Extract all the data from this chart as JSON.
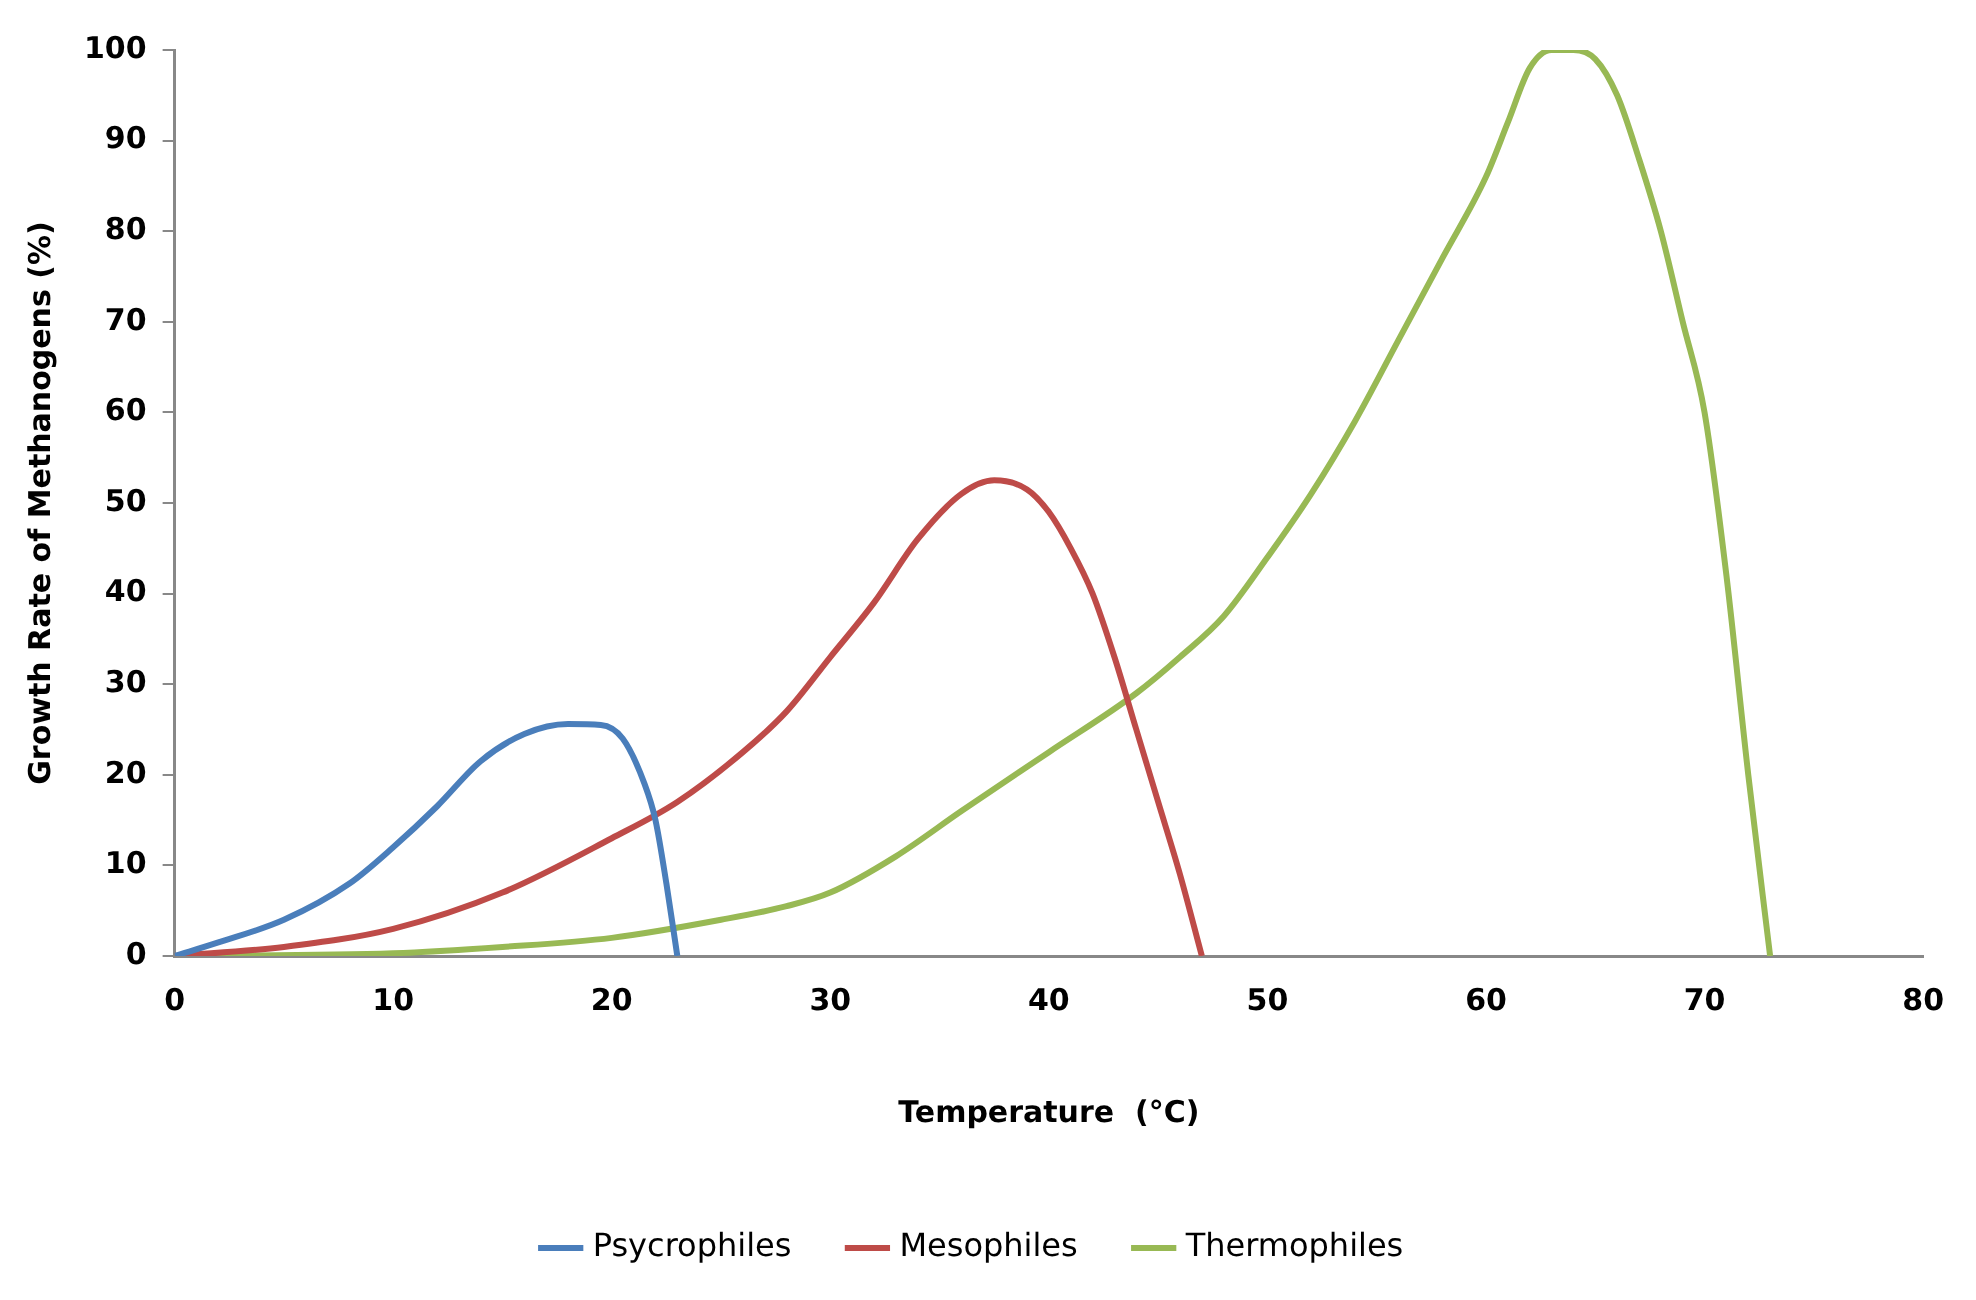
{
  "chart_data": {
    "type": "line",
    "xlabel": "Temperature  (°C)",
    "ylabel": "Growth Rate of Methanogens (%)",
    "xlim": [
      0,
      80
    ],
    "xticks": [
      0,
      10,
      20,
      30,
      40,
      50,
      60,
      70,
      80
    ],
    "ylim": [
      0,
      100
    ],
    "yticks": [
      0,
      10,
      20,
      30,
      40,
      50,
      60,
      70,
      80,
      90,
      100
    ],
    "grid": false,
    "legend": "bottom",
    "marker": "none",
    "line_style": "solid",
    "series": [
      {
        "name": "Psycrophiles",
        "color": "#4a7ebb",
        "x": [
          0,
          2,
          5,
          8,
          10,
          12,
          14,
          16,
          18,
          19.5,
          20.5,
          21.5,
          22,
          22.5,
          23
        ],
        "values": [
          0,
          1.5,
          4,
          8,
          12,
          16.5,
          21.5,
          24.5,
          25.6,
          25.5,
          24,
          19,
          15,
          8,
          0
        ]
      },
      {
        "name": "Mesophiles",
        "color": "#be4b48",
        "x": [
          0,
          5,
          10,
          15,
          20,
          23,
          26,
          28,
          30,
          32,
          34,
          36,
          37.5,
          39,
          40,
          41,
          42,
          43,
          44,
          45,
          46,
          47
        ],
        "values": [
          0,
          1,
          3,
          7,
          13,
          17,
          22.5,
          27,
          33,
          39,
          46,
          51,
          52.5,
          51.5,
          49,
          45,
          40,
          33,
          25,
          17,
          9,
          0
        ]
      },
      {
        "name": "Thermophiles",
        "color": "#98b954",
        "x": [
          0,
          10,
          15,
          20,
          25,
          28,
          30,
          33,
          36,
          40,
          44,
          46,
          48,
          50,
          52,
          54,
          56,
          58,
          60,
          61,
          62,
          63,
          64,
          65,
          66,
          67,
          68,
          69,
          70,
          71,
          72,
          73
        ],
        "values": [
          0,
          0.3,
          1,
          2,
          4,
          5.5,
          7,
          11,
          16,
          22.5,
          29,
          33,
          37.5,
          44,
          51,
          59,
          68,
          77,
          86,
          92,
          98,
          100,
          100,
          99,
          95,
          88,
          80,
          70,
          60,
          42,
          20,
          0
        ]
      }
    ]
  }
}
